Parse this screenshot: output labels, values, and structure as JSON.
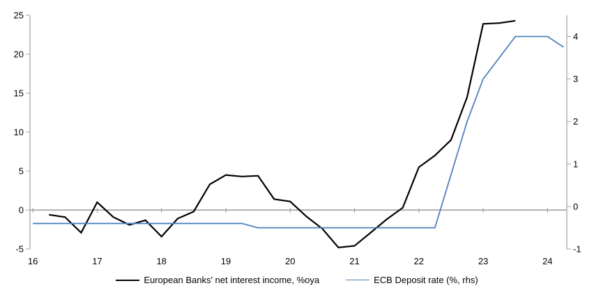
{
  "chart_data": {
    "type": "line",
    "title": "",
    "x_axis": {
      "tick_labels": [
        "16",
        "17",
        "18",
        "19",
        "20",
        "21",
        "22",
        "23",
        "24"
      ],
      "tick_values": [
        16,
        17,
        18,
        19,
        20,
        21,
        22,
        23,
        24
      ],
      "range": [
        15.955,
        24.3
      ]
    },
    "left_axis": {
      "tick_labels": [
        "25",
        "20",
        "15",
        "10",
        "5",
        "0",
        "-5"
      ],
      "tick_values": [
        25,
        20,
        15,
        10,
        5,
        0,
        -5
      ],
      "range": [
        -5,
        25
      ]
    },
    "right_axis": {
      "tick_labels": [
        "4",
        "3",
        "2",
        "1",
        "0",
        "-1"
      ],
      "tick_values": [
        4,
        3,
        2,
        1,
        0,
        -1
      ],
      "range": [
        -1,
        4.5
      ]
    },
    "grid": "off",
    "zero_line_at_left_value": 0,
    "legend_position": "bottom-center",
    "series": [
      {
        "name": "European Banks' net interest income, %oya",
        "axis": "left",
        "color": "#000000",
        "width": 2.2,
        "x": [
          16.25,
          16.5,
          16.75,
          17.0,
          17.25,
          17.5,
          17.75,
          18.0,
          18.25,
          18.5,
          18.75,
          19.0,
          19.25,
          19.5,
          19.75,
          20.0,
          20.25,
          20.5,
          20.75,
          21.0,
          21.25,
          21.5,
          21.75,
          22.0,
          22.25,
          22.5,
          22.75,
          23.0,
          23.25,
          23.5
        ],
        "y": [
          -0.6,
          -0.9,
          -2.9,
          1.0,
          -0.9,
          -1.9,
          -1.3,
          -3.4,
          -1.1,
          -0.2,
          3.3,
          4.5,
          4.3,
          4.4,
          1.4,
          1.1,
          -0.8,
          -2.4,
          -4.8,
          -4.6,
          -2.9,
          -1.2,
          0.3,
          5.5,
          7.0,
          9.0,
          14.5,
          23.9,
          24.0,
          24.3
        ]
      },
      {
        "name": "ECB Deposit rate (%, rhs)",
        "axis": "right",
        "color": "#4f81bd",
        "width": 1.8,
        "x": [
          16.0,
          19.25,
          19.5,
          22.25,
          22.5,
          22.75,
          23.0,
          23.25,
          23.5,
          23.75,
          24.0,
          24.25
        ],
        "y": [
          -0.4,
          -0.4,
          -0.5,
          -0.5,
          0.75,
          2.0,
          3.0,
          3.5,
          4.0,
          4.0,
          4.0,
          3.75
        ]
      }
    ]
  },
  "colors": {
    "axis": "#a6a6a6",
    "zero_line": "#999999",
    "text": "#000000",
    "accent_blue": "#4f81bd",
    "background": "#ffffff"
  }
}
